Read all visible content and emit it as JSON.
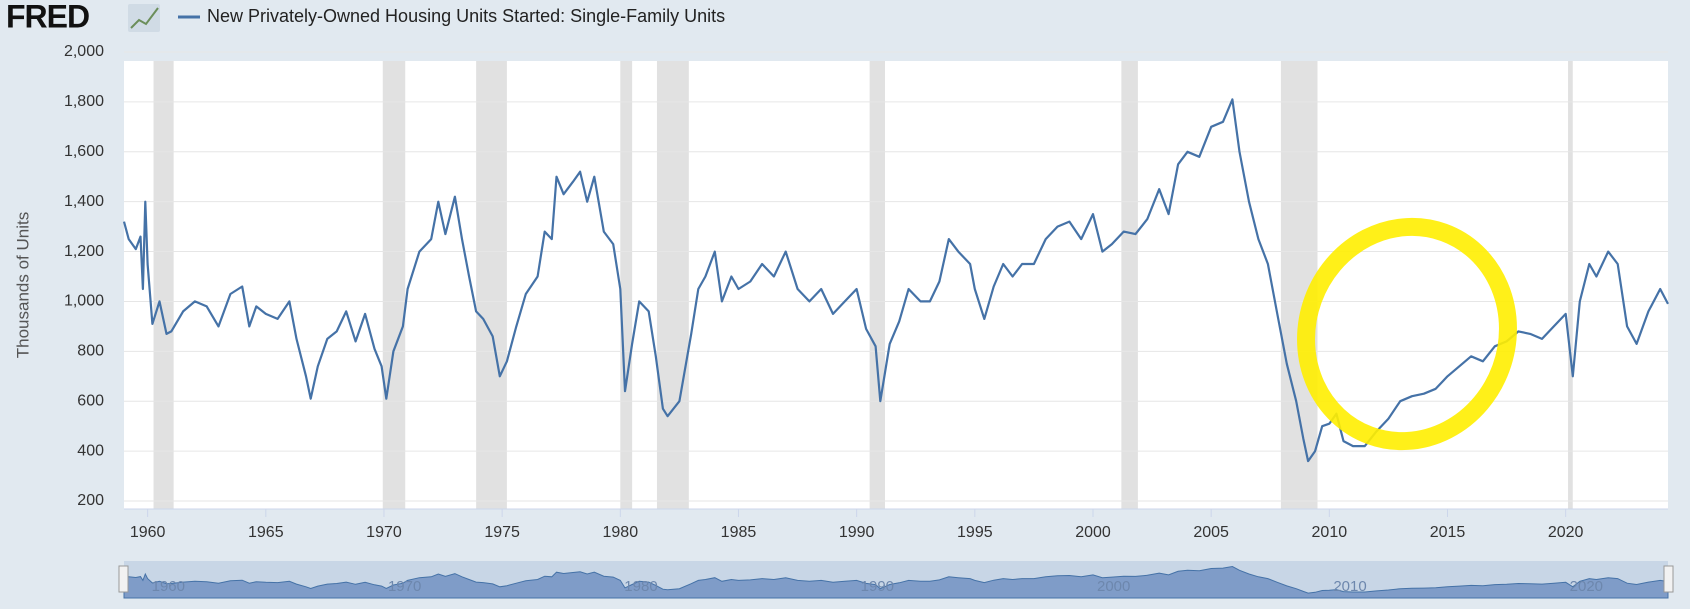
{
  "chart_data": {
    "type": "line",
    "logo": "FRED",
    "title": "New Privately-Owned Housing Units Started: Single-Family Units",
    "y_label": "Thousands of Units",
    "series": [
      {
        "name": "New Privately-Owned Housing Units Started: Single-Family Units",
        "color": "#4572a7",
        "x": [
          1959.0,
          1959.2,
          1959.5,
          1959.7,
          1959.8,
          1959.9,
          1960.0,
          1960.2,
          1960.5,
          1960.8,
          1961.0,
          1961.5,
          1962.0,
          1962.5,
          1963.0,
          1963.5,
          1964.0,
          1964.3,
          1964.6,
          1965.0,
          1965.5,
          1966.0,
          1966.3,
          1966.7,
          1966.9,
          1967.2,
          1967.6,
          1968.0,
          1968.4,
          1968.8,
          1969.2,
          1969.6,
          1969.9,
          1970.1,
          1970.4,
          1970.8,
          1971.0,
          1971.5,
          1972.0,
          1972.3,
          1972.6,
          1973.0,
          1973.3,
          1973.6,
          1973.9,
          1974.2,
          1974.6,
          1974.9,
          1975.2,
          1975.6,
          1976.0,
          1976.5,
          1976.8,
          1977.1,
          1977.3,
          1977.6,
          1978.0,
          1978.3,
          1978.6,
          1978.9,
          1979.3,
          1979.7,
          1980.0,
          1980.2,
          1980.5,
          1980.8,
          1981.2,
          1981.5,
          1981.8,
          1982.0,
          1982.5,
          1983.0,
          1983.3,
          1983.6,
          1984.0,
          1984.3,
          1984.7,
          1985.0,
          1985.5,
          1986.0,
          1986.5,
          1987.0,
          1987.5,
          1988.0,
          1988.5,
          1989.0,
          1989.5,
          1990.0,
          1990.4,
          1990.8,
          1991.0,
          1991.4,
          1991.8,
          1992.2,
          1992.7,
          1993.1,
          1993.5,
          1993.9,
          1994.3,
          1994.8,
          1995.0,
          1995.4,
          1995.8,
          1996.2,
          1996.6,
          1997.0,
          1997.5,
          1998.0,
          1998.5,
          1999.0,
          1999.5,
          2000.0,
          2000.4,
          2000.8,
          2001.3,
          2001.8,
          2002.3,
          2002.8,
          2003.2,
          2003.6,
          2004.0,
          2004.5,
          2005.0,
          2005.5,
          2005.9,
          2006.2,
          2006.6,
          2007.0,
          2007.4,
          2007.8,
          2008.2,
          2008.6,
          2008.9,
          2009.1,
          2009.4,
          2009.7,
          2010.0,
          2010.3,
          2010.6,
          2011.0,
          2011.5,
          2012.0,
          2012.5,
          2013.0,
          2013.5,
          2014.0,
          2014.5,
          2015.0,
          2015.5,
          2016.0,
          2016.5,
          2017.0,
          2017.5,
          2018.0,
          2018.5,
          2019.0,
          2019.5,
          2020.0,
          2020.3,
          2020.6,
          2021.0,
          2021.3,
          2021.8,
          2022.2,
          2022.6,
          2023.0,
          2023.5,
          2024.0,
          2024.33
        ],
        "values": [
          1320,
          1250,
          1210,
          1260,
          1050,
          1400,
          1150,
          910,
          1000,
          870,
          880,
          960,
          1000,
          980,
          900,
          1030,
          1060,
          900,
          980,
          950,
          930,
          1000,
          850,
          700,
          610,
          740,
          850,
          880,
          960,
          840,
          950,
          810,
          740,
          610,
          800,
          900,
          1050,
          1200,
          1250,
          1400,
          1270,
          1420,
          1250,
          1100,
          960,
          930,
          860,
          700,
          760,
          900,
          1030,
          1100,
          1280,
          1250,
          1500,
          1430,
          1480,
          1520,
          1400,
          1500,
          1280,
          1230,
          1050,
          640,
          830,
          1000,
          960,
          780,
          570,
          540,
          600,
          870,
          1050,
          1100,
          1200,
          1000,
          1100,
          1050,
          1080,
          1150,
          1100,
          1200,
          1050,
          1000,
          1050,
          950,
          1000,
          1050,
          890,
          820,
          600,
          830,
          920,
          1050,
          1000,
          1000,
          1080,
          1250,
          1200,
          1150,
          1050,
          930,
          1060,
          1150,
          1100,
          1150,
          1150,
          1250,
          1300,
          1320,
          1250,
          1350,
          1200,
          1230,
          1280,
          1270,
          1330,
          1450,
          1350,
          1550,
          1600,
          1580,
          1700,
          1720,
          1810,
          1600,
          1400,
          1250,
          1150,
          950,
          750,
          600,
          450,
          360,
          400,
          500,
          510,
          550,
          440,
          420,
          420,
          480,
          530,
          600,
          620,
          630,
          650,
          700,
          740,
          780,
          760,
          820,
          840,
          880,
          870,
          850,
          900,
          950,
          700,
          1000,
          1150,
          1100,
          1200,
          1150,
          900,
          830,
          960,
          1050,
          990
        ]
      }
    ],
    "recessions": [
      [
        1960.25,
        1961.1
      ],
      [
        1969.95,
        1970.9
      ],
      [
        1973.9,
        1975.2
      ],
      [
        1980.0,
        1980.5
      ],
      [
        1981.55,
        1982.9
      ],
      [
        1990.55,
        1991.2
      ],
      [
        2001.2,
        2001.9
      ],
      [
        2007.95,
        2009.5
      ],
      [
        2020.1,
        2020.3
      ]
    ],
    "recession_color": "#e1e1e1",
    "xlim": [
      1959,
      2024.33
    ],
    "xticks": [
      1960,
      1965,
      1970,
      1975,
      1980,
      1985,
      1990,
      1995,
      2000,
      2005,
      2010,
      2015,
      2020
    ],
    "ylim": [
      200,
      2000
    ],
    "yticks": [
      200,
      400,
      600,
      800,
      {
        "value": 1000,
        "label": "1,000"
      },
      {
        "value": 1200,
        "label": "1,200"
      },
      {
        "value": 1400,
        "label": "1,400"
      },
      {
        "value": 1600,
        "label": "1,600"
      },
      {
        "value": 1800,
        "label": "1,800"
      },
      {
        "value": 2000,
        "label": "2,000"
      }
    ],
    "grid": true,
    "navigator_xticks": [
      1960,
      1970,
      1980,
      1990,
      2000,
      2010,
      2020
    ]
  }
}
